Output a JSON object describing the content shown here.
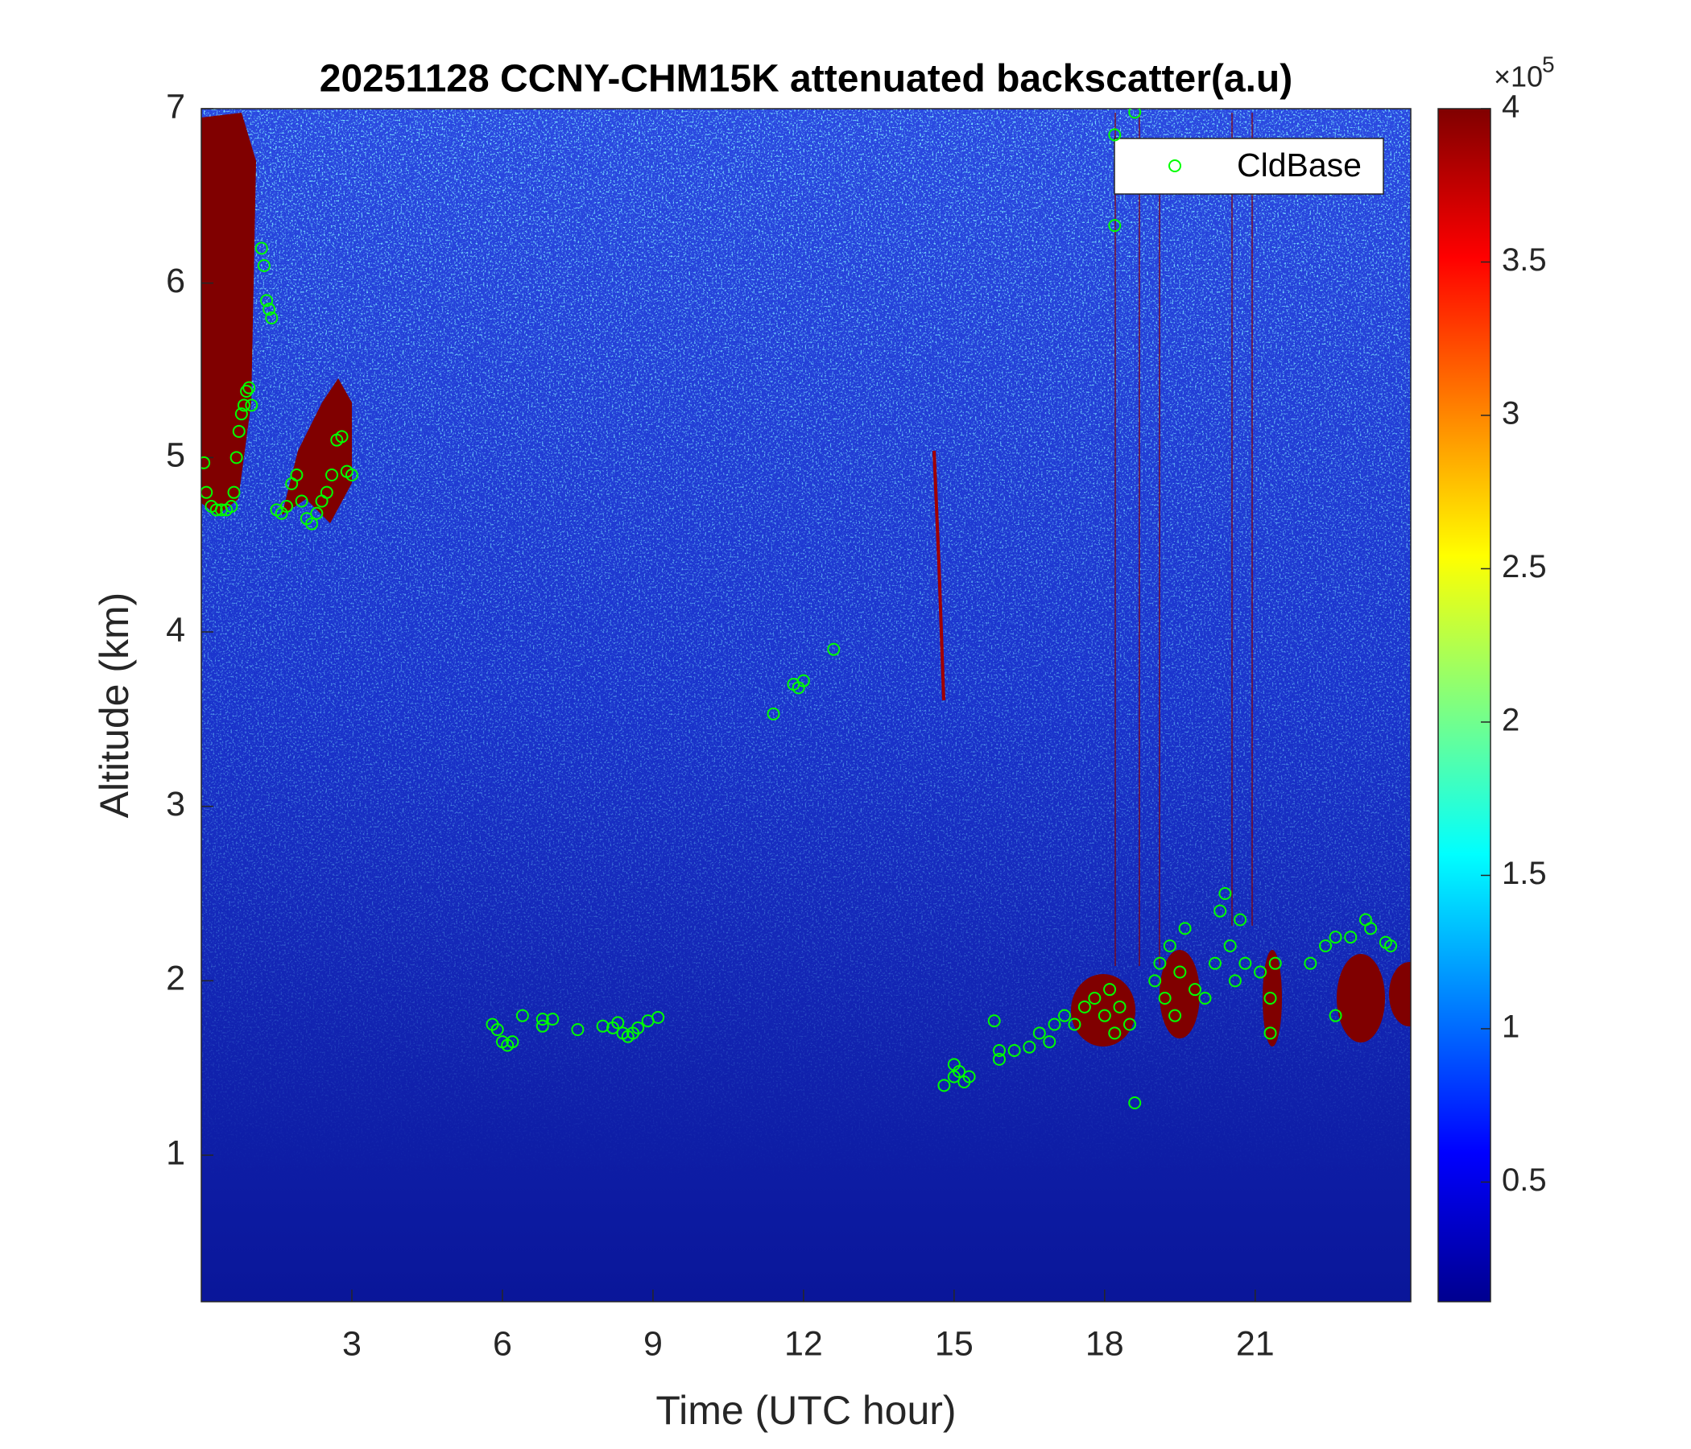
{
  "chart_data": {
    "type": "scatter",
    "title": "20251128 CCNY-CHM15K attenuated backscatter(a.u)",
    "xlabel": "Time (UTC hour)",
    "ylabel": "Altitude (km)",
    "xlim": [
      0,
      24.1
    ],
    "ylim": [
      0.16,
      7
    ],
    "xticks": [
      3,
      6,
      9,
      12,
      15,
      18,
      21
    ],
    "yticks": [
      1,
      2,
      3,
      4,
      5,
      6,
      7
    ],
    "legend": "top-right",
    "series": [
      {
        "name": "CldBase",
        "color": "#00ff00",
        "x": [
          0.05,
          0.1,
          0.2,
          0.3,
          0.4,
          0.5,
          0.6,
          0.65,
          0.7,
          0.75,
          0.8,
          0.85,
          0.9,
          0.95,
          1.0,
          1.2,
          1.25,
          1.3,
          1.35,
          1.4,
          1.5,
          1.6,
          1.7,
          1.8,
          1.9,
          2.0,
          2.1,
          2.2,
          2.3,
          2.4,
          2.5,
          2.6,
          2.7,
          2.8,
          2.9,
          3.0,
          5.8,
          5.9,
          6.0,
          6.1,
          6.2,
          6.4,
          6.8,
          6.8,
          7.0,
          7.5,
          8.0,
          8.2,
          8.3,
          8.4,
          8.5,
          8.6,
          8.7,
          8.9,
          9.1,
          11.4,
          11.8,
          11.9,
          12.0,
          12.6,
          14.8,
          15.0,
          15.0,
          15.1,
          15.3,
          15.2,
          15.8,
          15.9,
          15.9,
          16.2,
          16.5,
          16.7,
          16.9,
          17.0,
          17.2,
          17.4,
          17.6,
          17.8,
          18.0,
          18.1,
          18.2,
          18.3,
          18.5,
          18.6,
          18.6,
          18.2,
          18.2,
          19.0,
          19.1,
          19.2,
          19.3,
          19.4,
          19.5,
          19.6,
          19.8,
          20.0,
          20.2,
          20.3,
          20.4,
          20.5,
          20.6,
          20.7,
          20.8,
          21.1,
          21.3,
          21.4,
          21.3,
          22.1,
          22.4,
          22.6,
          22.6,
          22.9,
          23.2,
          23.3,
          23.6,
          23.7
        ],
        "values": [
          4.97,
          4.8,
          4.72,
          4.7,
          4.7,
          4.7,
          4.72,
          4.8,
          5.0,
          5.15,
          5.25,
          5.3,
          5.38,
          5.4,
          5.3,
          6.2,
          6.1,
          5.9,
          5.85,
          5.8,
          4.7,
          4.68,
          4.72,
          4.85,
          4.9,
          4.75,
          4.65,
          4.62,
          4.68,
          4.75,
          4.8,
          4.9,
          5.1,
          5.12,
          4.92,
          4.9,
          1.75,
          1.72,
          1.65,
          1.63,
          1.65,
          1.8,
          1.78,
          1.74,
          1.78,
          1.72,
          1.74,
          1.73,
          1.76,
          1.7,
          1.68,
          1.7,
          1.73,
          1.77,
          1.79,
          3.53,
          3.7,
          3.68,
          3.72,
          3.9,
          1.4,
          1.45,
          1.52,
          1.48,
          1.45,
          1.42,
          1.77,
          1.6,
          1.55,
          1.6,
          1.62,
          1.7,
          1.65,
          1.75,
          1.8,
          1.75,
          1.85,
          1.9,
          1.8,
          1.95,
          1.7,
          1.85,
          1.75,
          1.3,
          6.98,
          6.33,
          6.85,
          2.0,
          2.1,
          1.9,
          2.2,
          1.8,
          2.05,
          2.3,
          1.95,
          1.9,
          2.1,
          2.4,
          2.5,
          2.2,
          2.0,
          2.35,
          2.1,
          2.05,
          1.9,
          2.1,
          1.7,
          2.1,
          2.2,
          2.25,
          1.8,
          2.25,
          2.35,
          2.3,
          2.22,
          2.2
        ]
      }
    ],
    "colorbar": {
      "colormap": "jet",
      "clim": [
        0.11,
        4
      ],
      "ticks": [
        0.5,
        1,
        1.5,
        2,
        2.5,
        3,
        3.5,
        4
      ],
      "multiplier": "×10",
      "exponent": "5"
    }
  }
}
